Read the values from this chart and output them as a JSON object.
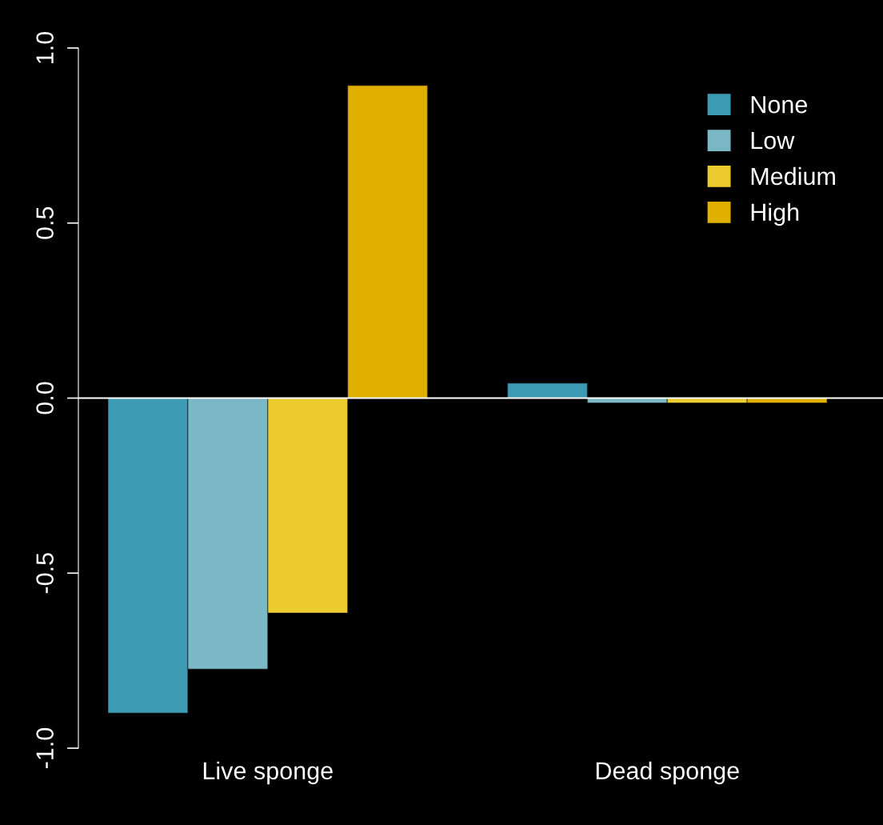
{
  "chart_data": {
    "type": "bar",
    "categories": [
      "Live sponge",
      "Dead sponge"
    ],
    "series": [
      {
        "name": "None",
        "color": "#3d9ab3",
        "values": [
          -0.9,
          0.043
        ]
      },
      {
        "name": "Low",
        "color": "#7ab8c6",
        "values": [
          -0.774,
          -0.014
        ]
      },
      {
        "name": "Medium",
        "color": "#ebcb2d",
        "values": [
          -0.614,
          -0.014
        ]
      },
      {
        "name": "High",
        "color": "#e0b000",
        "values": [
          0.893,
          -0.014
        ]
      }
    ],
    "ylim": [
      -1,
      1
    ],
    "yticks": [
      {
        "value": -1,
        "label": "-1.0"
      },
      {
        "value": -0.5,
        "label": "-0.5"
      },
      {
        "value": 0,
        "label": "0.0"
      },
      {
        "value": 0.5,
        "label": "0.5"
      },
      {
        "value": 1,
        "label": "1.0"
      }
    ],
    "ref_lines": [
      {
        "axis": "y",
        "value": 0,
        "color": "#ffffff"
      }
    ],
    "legend": "top right",
    "grid": false
  }
}
